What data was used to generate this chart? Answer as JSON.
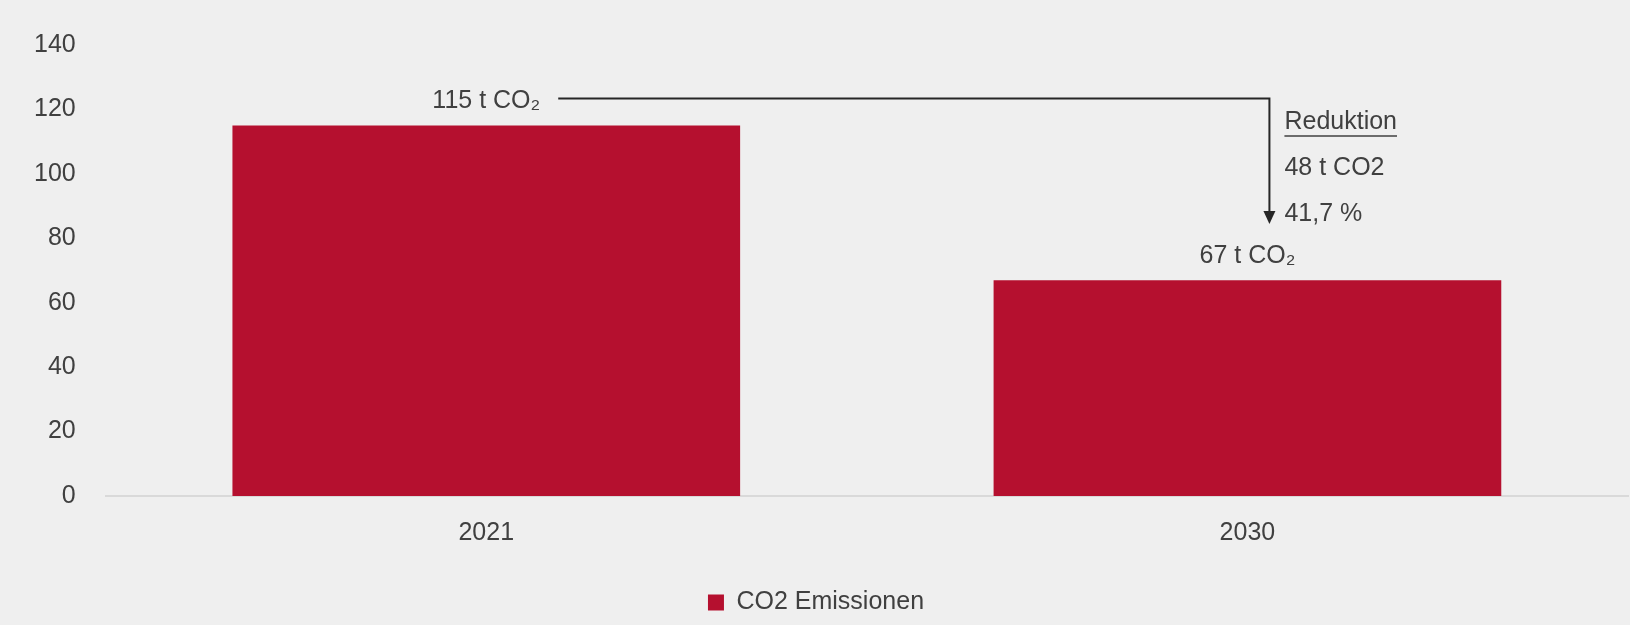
{
  "chart_data": {
    "type": "bar",
    "categories": [
      "2021",
      "2030"
    ],
    "series": [
      {
        "name": "CO2 Emissionen",
        "color": "#b5102f",
        "values": [
          115,
          67
        ],
        "value_labels": [
          "115 t CO₂",
          "67 t CO₂"
        ]
      }
    ],
    "ylim": [
      0,
      140
    ],
    "yticks": [
      0,
      20,
      40,
      60,
      80,
      100,
      120,
      140
    ],
    "grid": false,
    "legend": "bottom",
    "annotations": [
      "Reduktion",
      "48 t CO2",
      "41,7 %"
    ]
  }
}
